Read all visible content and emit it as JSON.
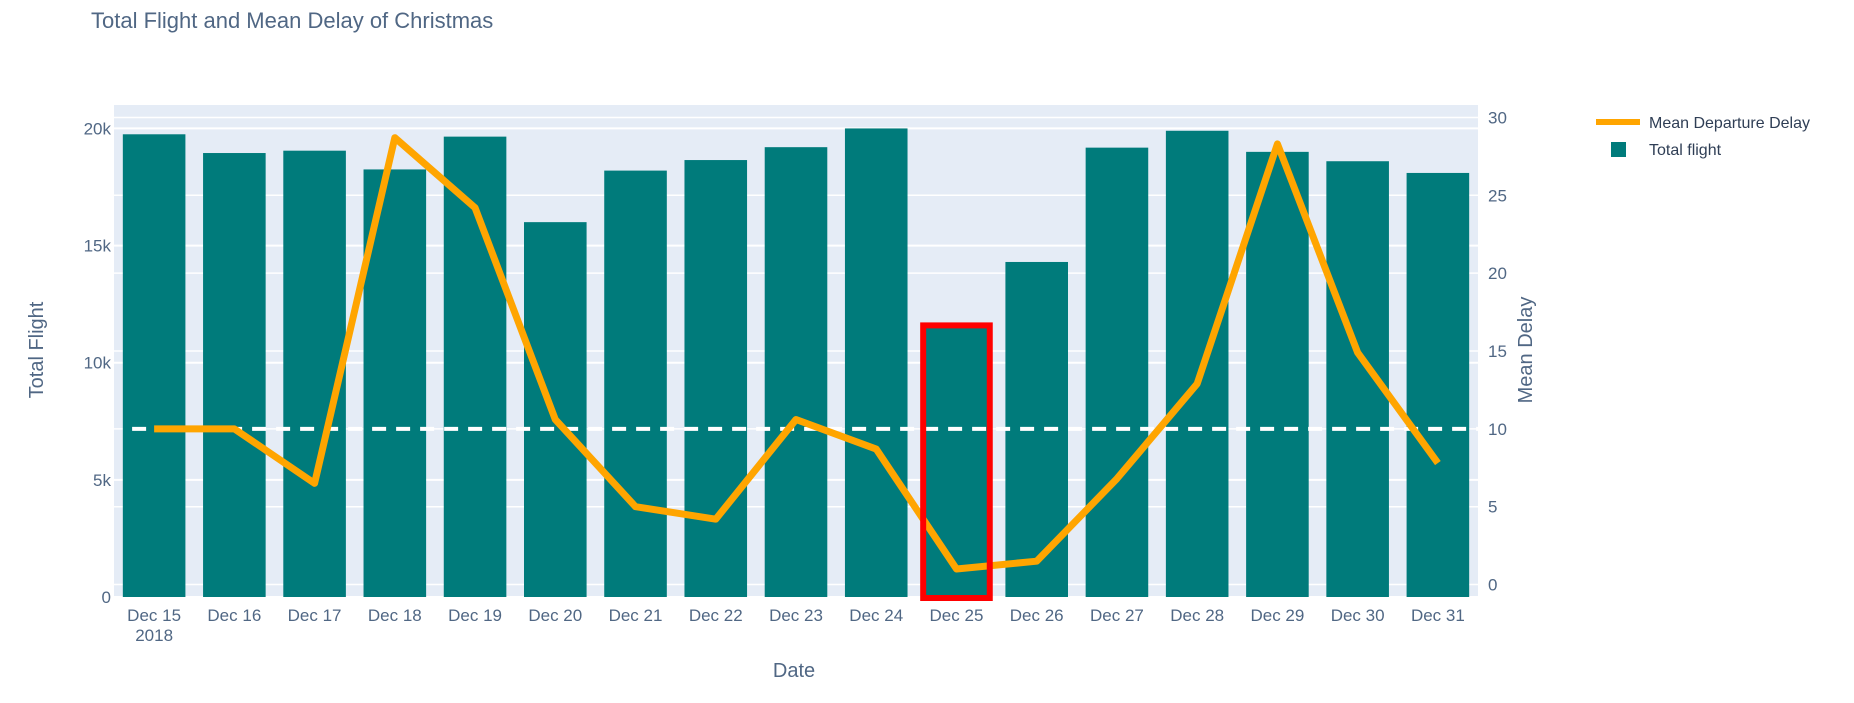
{
  "chart_data": {
    "type": "bar",
    "title": "Total Flight and Mean Delay of Christmas",
    "xlabel": "Date",
    "ylabel_left": "Total Flight",
    "ylabel_right": "Mean Delay",
    "x_tick_labels": [
      "Dec 15",
      "Dec 16",
      "Dec 17",
      "Dec 18",
      "Dec 19",
      "Dec 20",
      "Dec 21",
      "Dec 22",
      "Dec 23",
      "Dec 24",
      "Dec 25",
      "Dec 26",
      "Dec 27",
      "Dec 28",
      "Dec 29",
      "Dec 30",
      "Dec 31"
    ],
    "x_year_label": "2018",
    "y_left_ticks": [
      {
        "value": 0,
        "label": "0"
      },
      {
        "value": 5000,
        "label": "5k"
      },
      {
        "value": 10000,
        "label": "10k"
      },
      {
        "value": 15000,
        "label": "15k"
      },
      {
        "value": 20000,
        "label": "20k"
      }
    ],
    "y_right_ticks": [
      {
        "value": 0,
        "label": "0"
      },
      {
        "value": 5,
        "label": "5"
      },
      {
        "value": 10,
        "label": "10"
      },
      {
        "value": 15,
        "label": "15"
      },
      {
        "value": 20,
        "label": "20"
      },
      {
        "value": 25,
        "label": "25"
      },
      {
        "value": 30,
        "label": "30"
      }
    ],
    "ylim_left": [
      0,
      21000
    ],
    "ylim_right": [
      -0.8,
      30.8
    ],
    "grid": true,
    "legend_position": "top-right",
    "series": [
      {
        "name": "Total flight",
        "kind": "bar",
        "axis": "left",
        "color": "#007b7b",
        "values": [
          19750,
          18950,
          19050,
          18250,
          19650,
          16000,
          18200,
          18650,
          19200,
          20000,
          11550,
          14300,
          19180,
          19900,
          19000,
          18600,
          18100
        ]
      },
      {
        "name": "Mean Departure Delay",
        "kind": "line",
        "axis": "right",
        "color": "#ffa500",
        "values": [
          10.0,
          10.0,
          6.5,
          28.7,
          24.2,
          10.6,
          5.0,
          4.2,
          10.6,
          8.7,
          1.0,
          1.5,
          6.8,
          12.9,
          28.3,
          14.9,
          7.8
        ]
      }
    ],
    "reference_line": {
      "axis": "right",
      "value": 10,
      "style": "dashed",
      "color": "#ffffff"
    },
    "highlight": {
      "category": "Dec 25",
      "color": "#ff0000"
    },
    "colors": {
      "plot_background": "#e5ecf6",
      "grid": "#ffffff",
      "text": "#506784"
    }
  }
}
